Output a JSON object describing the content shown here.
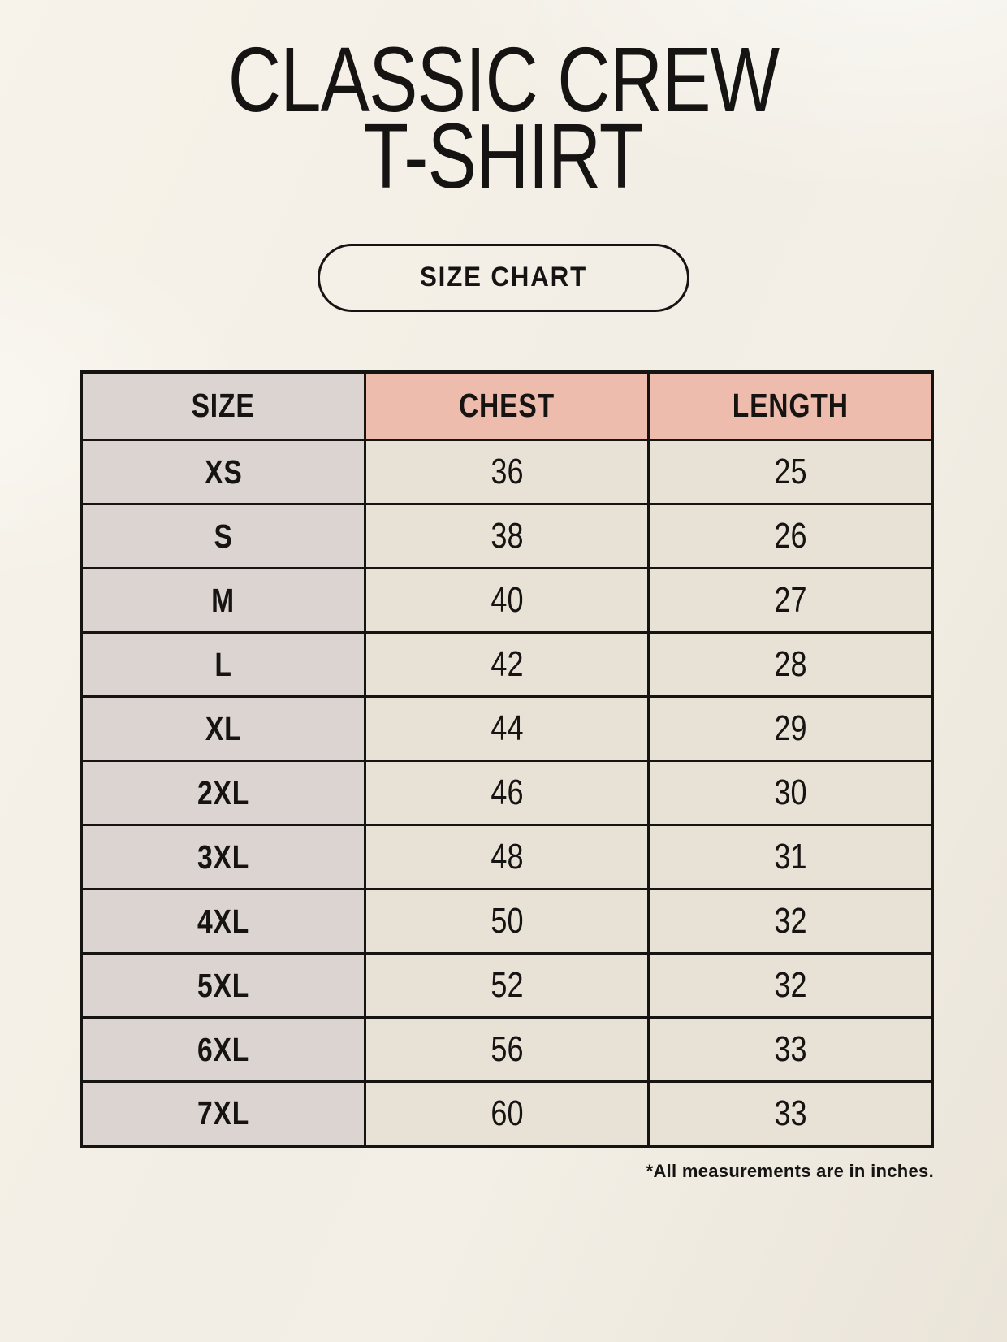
{
  "page": {
    "title": {
      "line1": "CLASSIC CREW",
      "line2": "T-SHIRT"
    },
    "badge_label": "SIZE CHART",
    "footnote": "*All measurements are in inches."
  },
  "colors": {
    "bg": "#f4f0e7",
    "accent": "#eebcad",
    "col-size": "#dcd4d0",
    "col-cell": "#e8e1d5",
    "ink": "#161413"
  },
  "chart_data": {
    "type": "table",
    "columns": [
      "SIZE",
      "CHEST",
      "LENGTH"
    ],
    "rows": [
      [
        "XS",
        "36",
        "25"
      ],
      [
        "S",
        "38",
        "26"
      ],
      [
        "M",
        "40",
        "27"
      ],
      [
        "L",
        "42",
        "28"
      ],
      [
        "XL",
        "44",
        "29"
      ],
      [
        "2XL",
        "46",
        "30"
      ],
      [
        "3XL",
        "48",
        "31"
      ],
      [
        "4XL",
        "50",
        "32"
      ],
      [
        "5XL",
        "52",
        "32"
      ],
      [
        "6XL",
        "56",
        "33"
      ],
      [
        "7XL",
        "60",
        "33"
      ]
    ]
  }
}
